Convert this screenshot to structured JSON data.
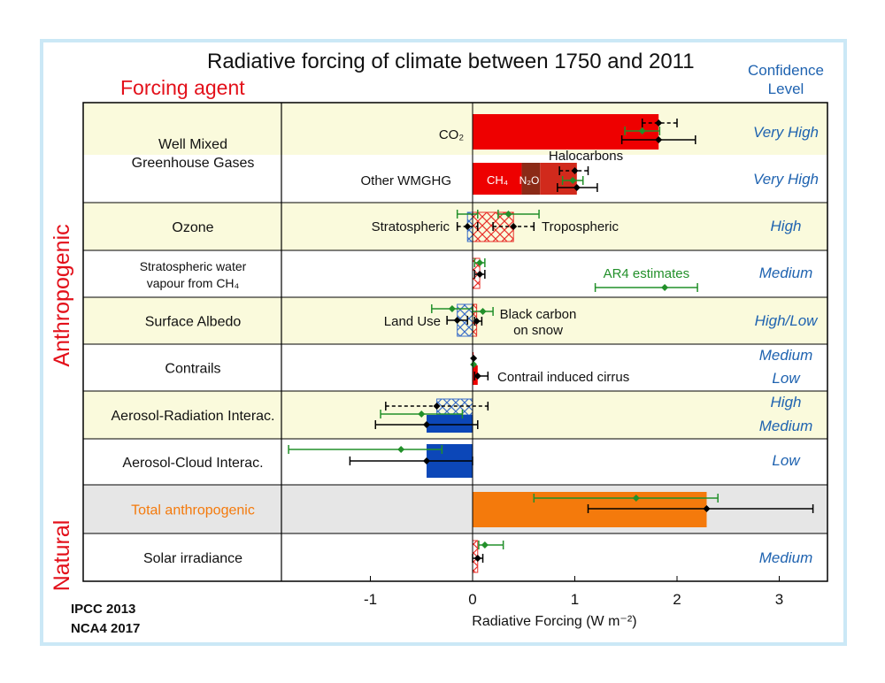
{
  "title": "Radiative forcing of climate between 1750 and 2011",
  "agent_header": "Forcing agent",
  "confidence_header": [
    "Confidence",
    "Level"
  ],
  "group_labels": {
    "anthropogenic": "Anthropogenic",
    "natural": "Natural"
  },
  "credits": [
    "IPCC 2013",
    "NCA4 2017"
  ],
  "colors": {
    "warming": "#ee0000",
    "cooling": "#0c47b8",
    "total": "#f47a0c",
    "confidence": "#1f63b0",
    "ar4": "#22902a",
    "row_shade": "#fafadc",
    "total_shade": "#e6e6e6"
  },
  "chart_data": {
    "type": "bar",
    "orientation": "horizontal",
    "xlabel": "Radiative Forcing (W m⁻²)",
    "xlim": [
      -1.85,
      3.35
    ],
    "xticks": [
      -1,
      0,
      1,
      2,
      3
    ],
    "legend_note": "AR4 estimates",
    "rows": [
      {
        "label": [
          "Well Mixed",
          "Greenhouse Gases"
        ],
        "group": "anthropogenic",
        "span": 2,
        "confidence": [
          "Very High",
          "Very High"
        ],
        "components": [
          {
            "label": "CO₂",
            "value": 1.82,
            "range": [
              1.46,
              2.18
            ],
            "ar4": {
              "value": 1.66,
              "range": [
                1.49,
                1.83
              ]
            }
          },
          {
            "label": "Other WMGHG",
            "value": 1.02,
            "range": [
              0.83,
              1.22
            ],
            "ar4": {
              "value": 0.98,
              "range": [
                0.88,
                1.08
              ]
            },
            "parts": [
              "CH₄",
              "N₂O",
              "Halocarbons"
            ]
          }
        ]
      },
      {
        "label": [
          "Ozone"
        ],
        "group": "anthropogenic",
        "span": 1,
        "confidence": [
          "High"
        ],
        "components": [
          {
            "label": "Stratospheric",
            "value": -0.05,
            "range": [
              -0.15,
              0.05
            ],
            "ar4": {
              "value": -0.05,
              "range": [
                -0.15,
                0.05
              ]
            }
          },
          {
            "label": "Tropospheric",
            "value": 0.4,
            "range": [
              0.2,
              0.6
            ],
            "ar4": {
              "value": 0.35,
              "range": [
                0.25,
                0.65
              ]
            }
          }
        ]
      },
      {
        "label": [
          "Stratospheric water",
          "vapour from CH₄"
        ],
        "group": "anthropogenic",
        "span": 1,
        "confidence": [
          "Medium"
        ],
        "components": [
          {
            "label": "",
            "value": 0.07,
            "range": [
              0.02,
              0.12
            ],
            "ar4": {
              "value": 0.07,
              "range": [
                0.02,
                0.12
              ]
            }
          }
        ]
      },
      {
        "label": [
          "Surface Albedo"
        ],
        "group": "anthropogenic",
        "span": 1,
        "confidence": [
          "High/Low"
        ],
        "components": [
          {
            "label": "Land Use",
            "value": -0.15,
            "range": [
              -0.25,
              -0.05
            ],
            "ar4": {
              "value": -0.2,
              "range": [
                -0.4,
                0.0
              ]
            }
          },
          {
            "label": "Black carbon on snow",
            "value": 0.04,
            "range": [
              0.02,
              0.09
            ],
            "ar4": {
              "value": 0.1,
              "range": [
                0.0,
                0.2
              ]
            }
          }
        ]
      },
      {
        "label": [
          "Contrails"
        ],
        "group": "anthropogenic",
        "span": 1,
        "confidence": [
          "Medium",
          "Low"
        ],
        "components": [
          {
            "label": "",
            "value": 0.01,
            "range": [
              0.005,
              0.03
            ],
            "ar4": {
              "value": 0.01,
              "range": [
                0.003,
                0.03
              ]
            }
          },
          {
            "label": "Contrail induced cirrus",
            "value": 0.05,
            "range": [
              0.02,
              0.15
            ],
            "ar4": {
              "value": 0.02,
              "range": [
                0.01,
                0.05
              ]
            }
          }
        ]
      },
      {
        "label": [
          "Aerosol-Radiation Interac."
        ],
        "group": "anthropogenic",
        "span": 1,
        "confidence": [
          "High",
          "Medium"
        ],
        "components": [
          {
            "label": "",
            "value": -0.35,
            "range": [
              -0.85,
              0.15
            ]
          },
          {
            "label": "",
            "value": -0.45,
            "range": [
              -0.95,
              0.05
            ],
            "ar4": {
              "value": -0.5,
              "range": [
                -0.9,
                -0.1
              ]
            }
          }
        ]
      },
      {
        "label": [
          "Aerosol-Cloud Interac."
        ],
        "group": "anthropogenic",
        "span": 1,
        "confidence": [
          "Low"
        ],
        "components": [
          {
            "label": "",
            "value": -0.45,
            "range": [
              -1.2,
              0.0
            ],
            "ar4": {
              "value": -0.7,
              "range": [
                -1.8,
                -0.3
              ]
            }
          }
        ]
      },
      {
        "label": [
          "Total anthropogenic"
        ],
        "group": "total",
        "span": 1,
        "confidence": [
          ""
        ],
        "components": [
          {
            "label": "",
            "value": 2.29,
            "range": [
              1.13,
              3.33
            ],
            "ar4": {
              "value": 1.6,
              "range": [
                0.6,
                2.4
              ]
            }
          }
        ]
      },
      {
        "label": [
          "Solar irradiance"
        ],
        "group": "natural",
        "span": 1,
        "confidence": [
          "Medium"
        ],
        "components": [
          {
            "label": "",
            "value": 0.05,
            "range": [
              0.0,
              0.1
            ],
            "ar4": {
              "value": 0.12,
              "range": [
                0.06,
                0.3
              ]
            }
          }
        ]
      }
    ]
  }
}
